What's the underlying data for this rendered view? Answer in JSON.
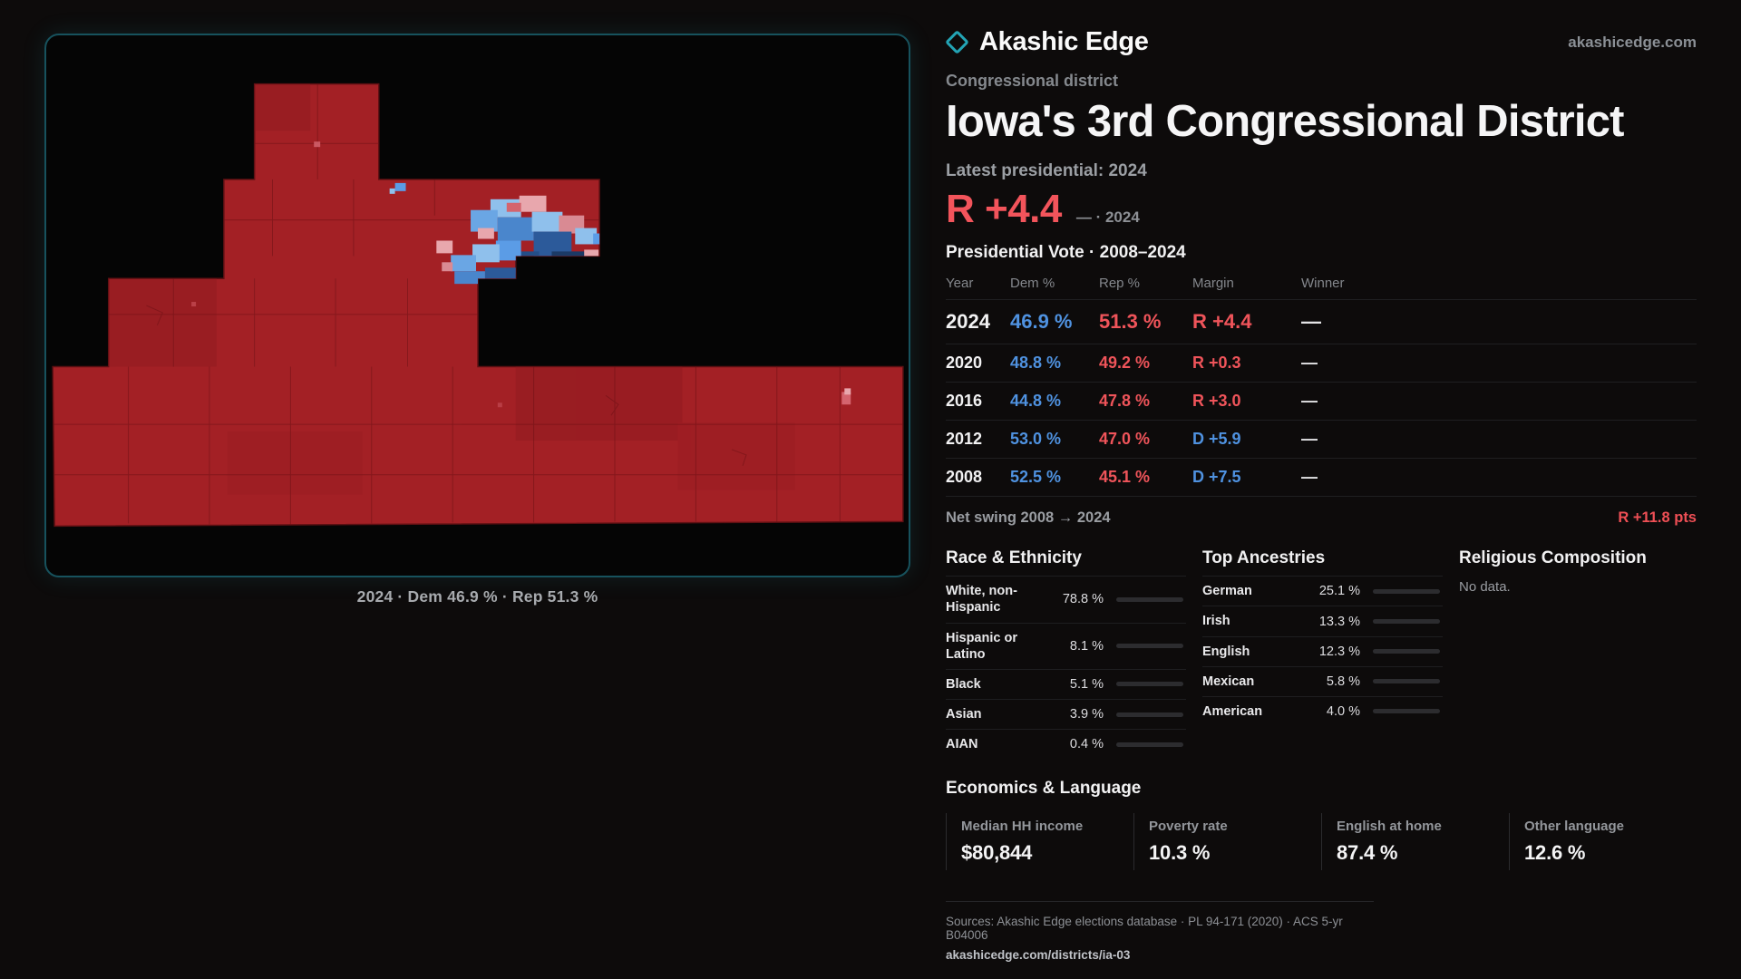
{
  "colors": {
    "accent_teal": "#23a4b5",
    "rep_red": "#ef4f55",
    "dem_blue": "#4f92e0",
    "map_red": "#a32025",
    "background": "#0d0b0b"
  },
  "map_panel": {
    "caption": "2024 · Dem 46.9 % · Rep 51.3 %"
  },
  "header": {
    "brand": "Akashic Edge",
    "site": "akashicedge.com",
    "kicker": "Congressional district",
    "title": "Iowa's 3rd Congressional District",
    "latest_label": "Latest presidential: 2024",
    "headline_margin": "R +4.4",
    "headline_note": "— · 2024"
  },
  "vote_table": {
    "title": "Presidential Vote · 2008–2024",
    "columns": [
      "Year",
      "Dem %",
      "Rep %",
      "Margin",
      "Winner"
    ],
    "rows": [
      {
        "year": "2024",
        "dem": "46.9 %",
        "rep": "51.3 %",
        "margin": "R +4.4",
        "winner": "—"
      },
      {
        "year": "2020",
        "dem": "48.8 %",
        "rep": "49.2 %",
        "margin": "R +0.3",
        "winner": "—"
      },
      {
        "year": "2016",
        "dem": "44.8 %",
        "rep": "47.8 %",
        "margin": "R +3.0",
        "winner": "—"
      },
      {
        "year": "2012",
        "dem": "53.0 %",
        "rep": "47.0 %",
        "margin": "D +5.9",
        "winner": "—"
      },
      {
        "year": "2008",
        "dem": "52.5 %",
        "rep": "45.1 %",
        "margin": "D +7.5",
        "winner": "—"
      }
    ]
  },
  "net_swing": {
    "label": "Net swing 2008 → 2024",
    "value": "R +11.8 pts"
  },
  "race": {
    "title": "Race & Ethnicity",
    "rows": [
      {
        "label": "White, non-Hispanic",
        "value": "78.8 %",
        "pct": 78.8,
        "color": "#b9bfc7"
      },
      {
        "label": "Hispanic or Latino",
        "value": "8.1 %",
        "pct": 8.1,
        "color": "#e2a33c"
      },
      {
        "label": "Black",
        "value": "5.1 %",
        "pct": 5.1,
        "color": "#8b7cf0"
      },
      {
        "label": "Asian",
        "value": "3.9 %",
        "pct": 3.9,
        "color": "#43b06e"
      },
      {
        "label": "AIAN",
        "value": "0.4 %",
        "pct": 0.4,
        "color": "#d1603d"
      }
    ]
  },
  "ancestries": {
    "title": "Top Ancestries",
    "rows": [
      {
        "label": "German",
        "value": "25.1 %",
        "pct": 25.1,
        "color": "#93a0ad"
      },
      {
        "label": "Irish",
        "value": "13.3 %",
        "pct": 13.3,
        "color": "#93a0ad"
      },
      {
        "label": "English",
        "value": "12.3 %",
        "pct": 12.3,
        "color": "#93a0ad"
      },
      {
        "label": "Mexican",
        "value": "5.8 %",
        "pct": 5.8,
        "color": "#e2c23c"
      },
      {
        "label": "American",
        "value": "4.0 %",
        "pct": 4.0,
        "color": "#aab3bd"
      }
    ]
  },
  "religion": {
    "title": "Religious Composition",
    "empty": "No data."
  },
  "economics": {
    "title": "Economics & Language",
    "stats": [
      {
        "label": "Median HH income",
        "value": "$80,844"
      },
      {
        "label": "Poverty rate",
        "value": "10.3 %"
      },
      {
        "label": "English at home",
        "value": "87.4 %"
      },
      {
        "label": "Other language",
        "value": "12.6 %"
      }
    ]
  },
  "footer": {
    "sources": "Sources: Akashic Edge elections database · PL 94-171 (2020) · ACS 5-yr B04006",
    "permalink": "akashicedge.com/districts/ia-03"
  }
}
